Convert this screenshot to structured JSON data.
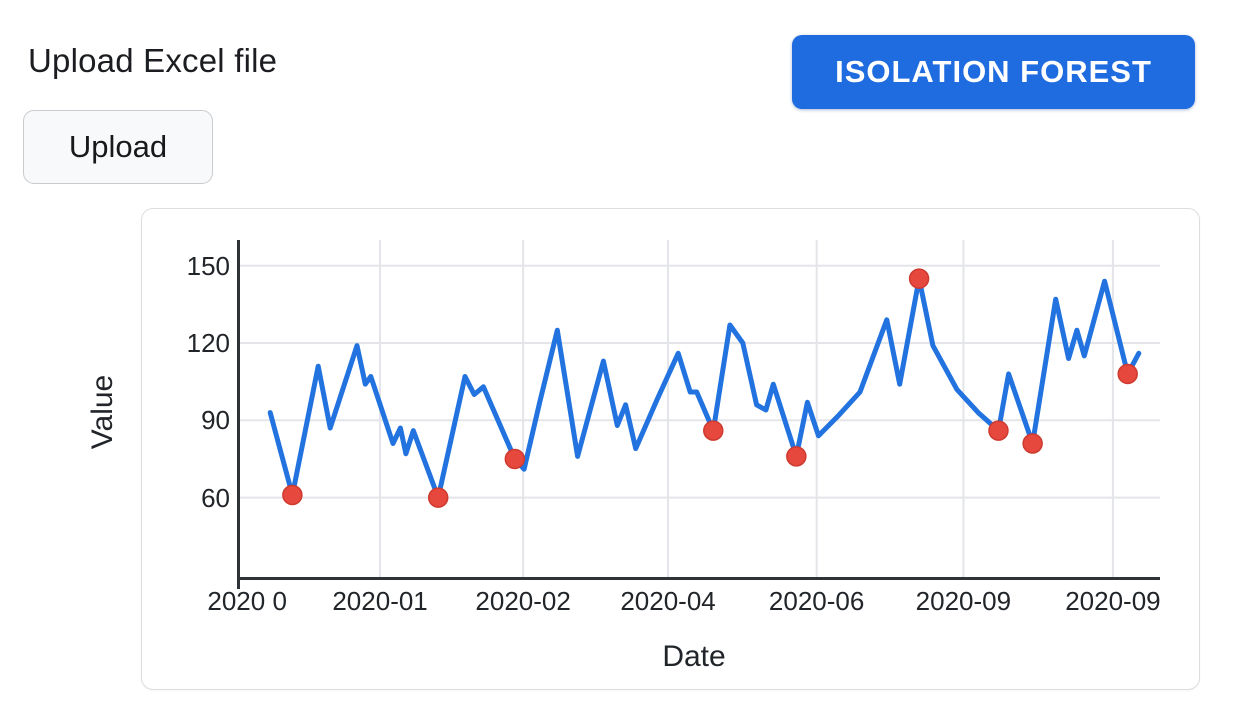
{
  "header": {
    "title": "Upload Excel file"
  },
  "controls": {
    "upload_button_label": "Upload",
    "algorithm_button_label": "ISOLATION FOREST"
  },
  "colors": {
    "button_blue": "#1f6be0",
    "line_blue": "#2273df",
    "anomaly_red": "#e6483d",
    "anomaly_red_edge": "#ce3a2f",
    "grid": "#e4e5e9",
    "axis": "#2f3337",
    "text": "#212529",
    "card_border": "#dcdde0"
  },
  "chart_data": {
    "type": "line",
    "title": "",
    "xlabel": "Date",
    "ylabel": "Value",
    "legend": "none",
    "grid": true,
    "ylim": [
      28,
      160
    ],
    "y_ticks": [
      150,
      120,
      90,
      60
    ],
    "x_tick_labels": [
      "2020 0",
      "2020-01",
      "2020-02",
      "2020-04",
      "2020-06",
      "2020-09",
      "2020-09"
    ],
    "x_tick_pos": [
      0.011,
      0.155,
      0.31,
      0.467,
      0.628,
      0.787,
      0.949
    ],
    "x_grid_pos": [
      0.155,
      0.31,
      0.467,
      0.628,
      0.787,
      0.949
    ],
    "series": [
      {
        "name": "Value",
        "points": [
          [
            0.036,
            93
          ],
          [
            0.06,
            61
          ],
          [
            0.088,
            111
          ],
          [
            0.101,
            87
          ],
          [
            0.13,
            119
          ],
          [
            0.139,
            104
          ],
          [
            0.145,
            107
          ],
          [
            0.169,
            81
          ],
          [
            0.177,
            87
          ],
          [
            0.183,
            77
          ],
          [
            0.191,
            86
          ],
          [
            0.218,
            60
          ],
          [
            0.247,
            107
          ],
          [
            0.257,
            100
          ],
          [
            0.267,
            103
          ],
          [
            0.301,
            75
          ],
          [
            0.311,
            71
          ],
          [
            0.328,
            97
          ],
          [
            0.347,
            125
          ],
          [
            0.369,
            76
          ],
          [
            0.397,
            113
          ],
          [
            0.412,
            88
          ],
          [
            0.421,
            96
          ],
          [
            0.432,
            79
          ],
          [
            0.455,
            98
          ],
          [
            0.478,
            116
          ],
          [
            0.491,
            101
          ],
          [
            0.498,
            101
          ],
          [
            0.516,
            86
          ],
          [
            0.534,
            127
          ],
          [
            0.548,
            120
          ],
          [
            0.563,
            96
          ],
          [
            0.573,
            94
          ],
          [
            0.581,
            104
          ],
          [
            0.606,
            76
          ],
          [
            0.618,
            97
          ],
          [
            0.63,
            84
          ],
          [
            0.652,
            92
          ],
          [
            0.675,
            101
          ],
          [
            0.704,
            129
          ],
          [
            0.718,
            104
          ],
          [
            0.739,
            145
          ],
          [
            0.754,
            119
          ],
          [
            0.78,
            102
          ],
          [
            0.803,
            93
          ],
          [
            0.825,
            86
          ],
          [
            0.836,
            108
          ],
          [
            0.862,
            81
          ],
          [
            0.887,
            137
          ],
          [
            0.901,
            114
          ],
          [
            0.91,
            125
          ],
          [
            0.918,
            115
          ],
          [
            0.94,
            144
          ],
          [
            0.965,
            108
          ],
          [
            0.977,
            116
          ]
        ]
      }
    ],
    "anomaly_indices": [
      1,
      11,
      15,
      28,
      34,
      41,
      45,
      47,
      53
    ],
    "anomaly_values": [
      61,
      60,
      75,
      86,
      76,
      145,
      86,
      81,
      108
    ]
  }
}
